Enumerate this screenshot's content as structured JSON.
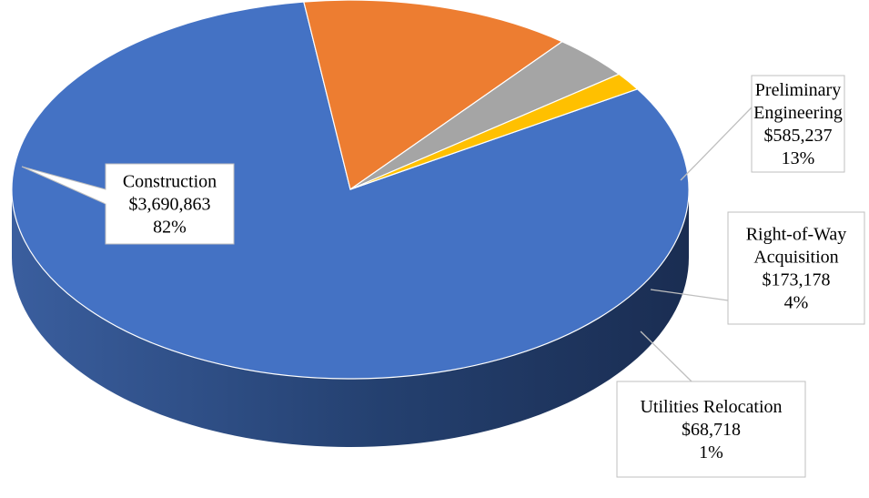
{
  "chart_data": {
    "type": "pie",
    "style": "3d",
    "title": "",
    "legend": "none",
    "slices": [
      {
        "name": "Construction",
        "value": 3690863,
        "value_label": "$3,690,863",
        "percent_label": "82%",
        "color": "#4472C4",
        "side_color": "#2E4D86",
        "label_lines": [
          "Construction",
          "$3,690,863",
          "82%"
        ]
      },
      {
        "name": "Preliminary Engineering",
        "value": 585237,
        "value_label": "$585,237",
        "percent_label": "13%",
        "color": "#ED7D31",
        "side_color": "#A8561F",
        "label_lines": [
          "Preliminary",
          "Engineering",
          "$585,237",
          "13%"
        ]
      },
      {
        "name": "Right-of-Way Acquisition",
        "value": 173178,
        "value_label": "$173,178",
        "percent_label": "4%",
        "color": "#A5A5A5",
        "side_color": "#404040",
        "label_lines": [
          "Right-of-Way",
          "Acquisition",
          "$173,178",
          "4%"
        ]
      },
      {
        "name": "Utilities Relocation",
        "value": 68718,
        "value_label": "$68,718",
        "percent_label": "1%",
        "color": "#FFC000",
        "side_color": "#7F5F00",
        "label_lines": [
          "Utilities Relocation",
          "$68,718",
          "1%"
        ]
      }
    ]
  }
}
